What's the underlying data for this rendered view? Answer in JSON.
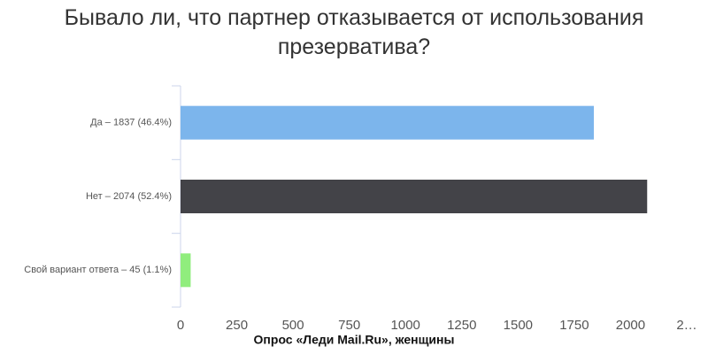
{
  "chart_data": {
    "type": "hbar",
    "title": "Бывало ли, что партнер отказывается от использования презерватива?",
    "source": "Опрос «Леди Mail.Ru», женщины",
    "categories": [
      "Да – 1837 (46.4%)",
      "Нет – 2074 (52.4%)",
      "Свой вариант ответа – 45 (1.1%)"
    ],
    "values": [
      1837,
      2074,
      45
    ],
    "colors": [
      "#7cb5ec",
      "#434348",
      "#90ed7d"
    ],
    "xlim": [
      0,
      2250
    ],
    "xticks": [
      0,
      250,
      500,
      750,
      1000,
      1250,
      1500,
      1750,
      2000,
      {
        "value": 2250,
        "label": "2…"
      }
    ]
  }
}
